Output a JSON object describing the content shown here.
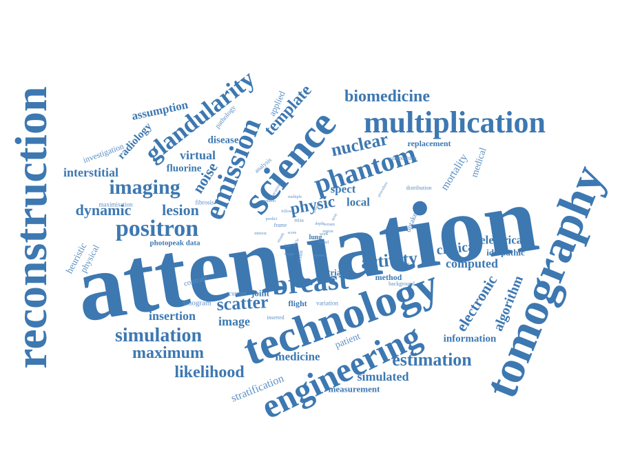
{
  "palette": {
    "dark": "#3d78b1",
    "light": "#5b8fc4",
    "background": "#ffffff"
  },
  "words": {
    "attenuation": "attenuation",
    "reconstruction": "reconstruction",
    "tomography": "tomography",
    "technology": "technology",
    "engineering": "engineering",
    "science": "science",
    "phantom": "phantom",
    "multiplication": "multiplication",
    "emission": "emission",
    "glandularity": "glandularity",
    "breast": "breast",
    "positron": "positron",
    "imaging": "imaging",
    "biomedicine": "biomedicine",
    "nuclear": "nuclear",
    "template": "template",
    "activity": "activity",
    "scatter": "scatter",
    "simulation": "simulation",
    "maximum": "maximum",
    "likelihood": "likelihood",
    "estimation": "estimation",
    "simulated": "simulated",
    "measurement": "measurement",
    "stratification": "stratification",
    "medicine": "medicine",
    "patient": "patient",
    "information": "information",
    "algorithm": "algorithm",
    "electronic": "electronic",
    "computed": "computed",
    "electrical": "electrical",
    "idiopathic": "idiopathic",
    "clinical": "clinical",
    "mortality": "mortality",
    "medical": "medical",
    "replacement": "replacement",
    "composition": "composition",
    "distribution": "distribution",
    "uptake": "uptake",
    "physic": "physic",
    "spect": "spect",
    "local": "local",
    "lesion": "lesion",
    "dynamic": "dynamic",
    "noise": "noise",
    "fluorine": "fluorine",
    "virtual": "virtual",
    "disease": "disease",
    "interstitial": "interstitial",
    "radiology": "radiology",
    "investigation": "investigation",
    "assumption": "assumption",
    "pathology": "pathology",
    "applied": "applied",
    "analysis": "analysis",
    "heuristic": "heuristic",
    "physical": "physical",
    "maximisation": "maximisation",
    "fibrosis": "fibrosis",
    "photopeak_data": "photopeak data",
    "contrast": "contrast",
    "sinogram": "sinogram",
    "current": "current",
    "joint": "joint",
    "image": "image",
    "insertion": "insertion",
    "flight": "flight",
    "variation": "variation",
    "inserted": "inserted",
    "trial": "trial",
    "method": "method",
    "background": "background",
    "lung": "lung",
    "result": "result",
    "frame": "frame",
    "mlaa": "mlaa",
    "problem": "problem",
    "multiple": "multiple",
    "association": "association",
    "procedure": "procedure",
    "depth": "depth",
    "score": "score",
    "region": "region",
    "work": "work",
    "vessel": "vessel",
    "interest": "interest",
    "cycle": "cycle",
    "month": "month",
    "system": "system",
    "predict": "predict",
    "present": "present",
    "term": "term",
    "single": "single",
    "life": "life",
    "terrain": "terrain",
    "follow": "follow"
  }
}
